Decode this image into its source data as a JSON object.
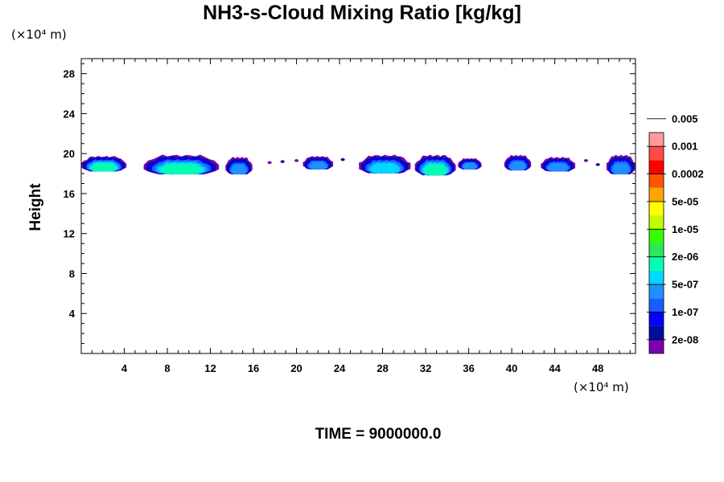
{
  "chart_data": {
    "type": "heatmap",
    "title": "NH3-s-Cloud Mixing Ratio [kg/kg]",
    "ylabel": "Height",
    "xlabel": "",
    "y_unit": "(×10⁴ m)",
    "x_unit": "(×10⁴ m)",
    "footer": "TIME = 9000000.0",
    "xlim": [
      0,
      51.5
    ],
    "ylim": [
      0,
      29.5
    ],
    "xticks": [
      "4",
      "8",
      "12",
      "16",
      "20",
      "24",
      "28",
      "32",
      "36",
      "40",
      "44",
      "48"
    ],
    "yticks": [
      "4",
      "8",
      "12",
      "16",
      "20",
      "24",
      "28"
    ],
    "colorbar": {
      "colors": [
        "#7a00b4",
        "#000e9e",
        "#0000ff",
        "#1a5cff",
        "#1e90ff",
        "#00d9ff",
        "#00ffb0",
        "#2ee65a",
        "#32ff00",
        "#bfff00",
        "#ffff00",
        "#ffa500",
        "#ff5500",
        "#ff0000",
        "#ff4a4a",
        "#ff9a9a"
      ],
      "labels": [
        "2e-08",
        "1e-07",
        "5e-07",
        "2e-06",
        "1e-05",
        "5e-05",
        "0.0002",
        "0.001",
        "0.005"
      ]
    },
    "cloud_patches": [
      {
        "x0": 0.0,
        "x1": 4.2,
        "yb": 18.2,
        "yt": 19.7,
        "core": 2
      },
      {
        "x0": 5.8,
        "x1": 12.8,
        "yb": 17.9,
        "yt": 19.8,
        "core": 2
      },
      {
        "x0": 13.4,
        "x1": 15.9,
        "yb": 17.9,
        "yt": 19.6,
        "core": 0
      },
      {
        "x0": 20.6,
        "x1": 23.4,
        "yb": 18.4,
        "yt": 19.7,
        "core": 0
      },
      {
        "x0": 25.8,
        "x1": 30.6,
        "yb": 18.0,
        "yt": 19.8,
        "core": 1
      },
      {
        "x0": 31.0,
        "x1": 34.8,
        "yb": 17.8,
        "yt": 19.8,
        "core": 2
      },
      {
        "x0": 35.0,
        "x1": 37.2,
        "yb": 18.4,
        "yt": 19.5,
        "core": 0
      },
      {
        "x0": 39.3,
        "x1": 41.8,
        "yb": 18.3,
        "yt": 19.8,
        "core": 0
      },
      {
        "x0": 42.7,
        "x1": 45.9,
        "yb": 18.2,
        "yt": 19.6,
        "core": 0
      },
      {
        "x0": 48.8,
        "x1": 51.5,
        "yb": 17.9,
        "yt": 19.8,
        "core": 0
      }
    ],
    "cloud_specks": [
      {
        "x": 17.5,
        "y": 19.1
      },
      {
        "x": 18.7,
        "y": 19.2
      },
      {
        "x": 20.0,
        "y": 19.3
      },
      {
        "x": 24.3,
        "y": 19.4
      },
      {
        "x": 46.9,
        "y": 19.3
      },
      {
        "x": 48.0,
        "y": 18.9
      }
    ]
  }
}
